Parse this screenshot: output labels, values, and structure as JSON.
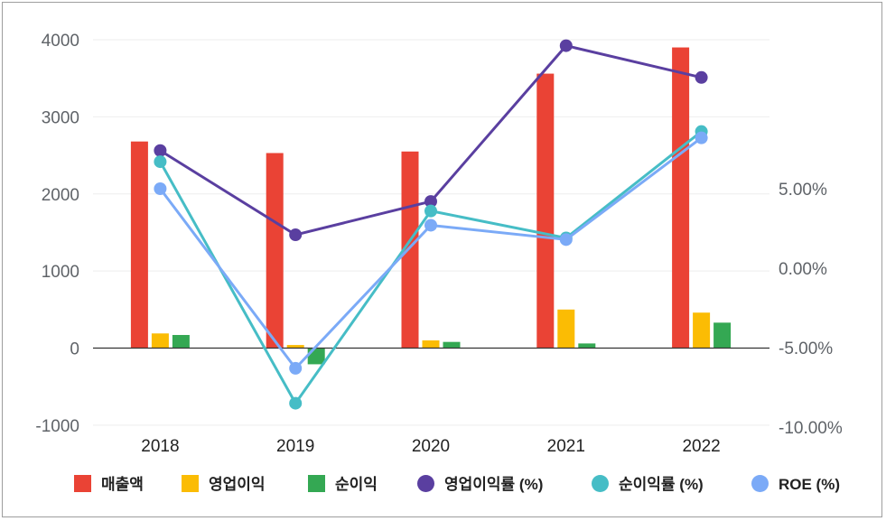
{
  "chart_data": {
    "type": "bar",
    "categories": [
      "2018",
      "2019",
      "2020",
      "2021",
      "2022"
    ],
    "y_left": {
      "ticks": [
        "-1000",
        "0",
        "1000",
        "2000",
        "3000",
        "4000"
      ],
      "lim": [
        -1000,
        4000
      ]
    },
    "y_right": {
      "ticks": [
        "-10.00%",
        "-5.00%",
        "0.00%",
        "5.00%"
      ],
      "lim": [
        -10,
        19
      ]
    },
    "bar_series": [
      {
        "name": "매출액",
        "color": "#ea4335",
        "values": [
          2680,
          2530,
          2550,
          3560,
          3900
        ]
      },
      {
        "name": "영업이익",
        "color": "#fbbc04",
        "values": [
          190,
          40,
          100,
          500,
          460
        ]
      },
      {
        "name": "순이익",
        "color": "#34a853",
        "values": [
          170,
          -210,
          80,
          60,
          330
        ]
      }
    ],
    "line_series": [
      {
        "name": "영업이익률 (%)",
        "color": "#5a3fa0",
        "values": [
          7.4,
          2.1,
          4.2,
          14.0,
          12.0
        ]
      },
      {
        "name": "순이익률 (%)",
        "color": "#46bdc6",
        "values": [
          6.7,
          -8.5,
          3.6,
          1.9,
          8.6
        ]
      },
      {
        "name": "ROE (%)",
        "color": "#7baaf7",
        "values": [
          5.0,
          -6.3,
          2.7,
          1.8,
          8.2
        ]
      }
    ],
    "grid": true,
    "legend_position": "bottom"
  }
}
